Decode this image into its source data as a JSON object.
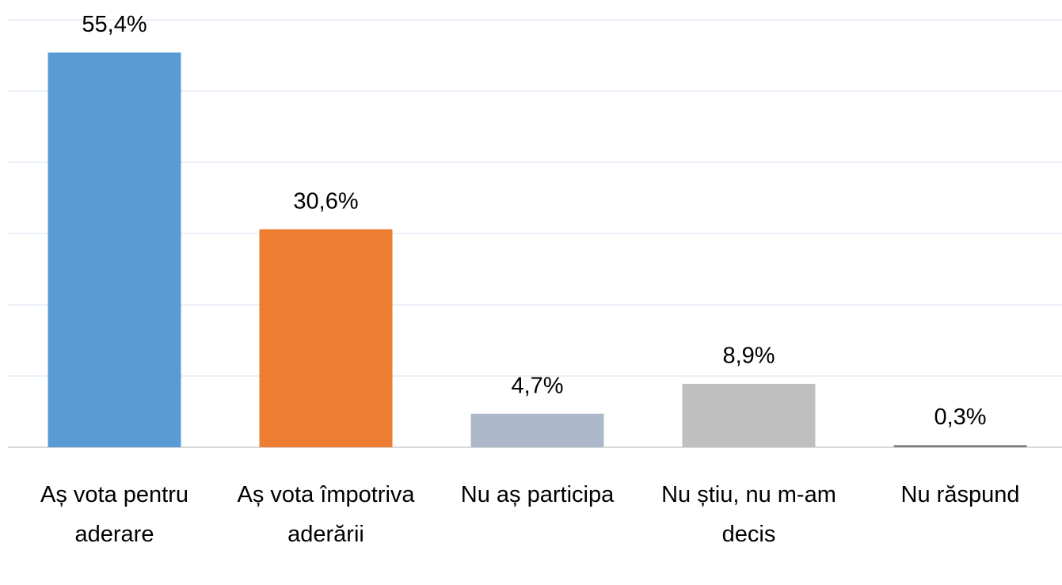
{
  "chart_data": {
    "type": "bar",
    "categories": [
      "Aș vota pentru aderare",
      "Aș vota împotriva aderării",
      "Nu aș participa",
      "Nu știu, nu m-am decis",
      "Nu răspund"
    ],
    "values": [
      55.4,
      30.6,
      4.7,
      8.9,
      0.3
    ],
    "value_labels": [
      "55,4%",
      "30,6%",
      "4,7%",
      "8,9%",
      "0,3%"
    ],
    "colors": [
      "#5b9bd5",
      "#ed7d31",
      "#adb9ca",
      "#bfbfbf",
      "#7f7f7f"
    ],
    "ylim": [
      0,
      60
    ],
    "yticks": [
      0,
      10,
      20,
      30,
      40,
      50,
      60
    ],
    "grid": true
  }
}
